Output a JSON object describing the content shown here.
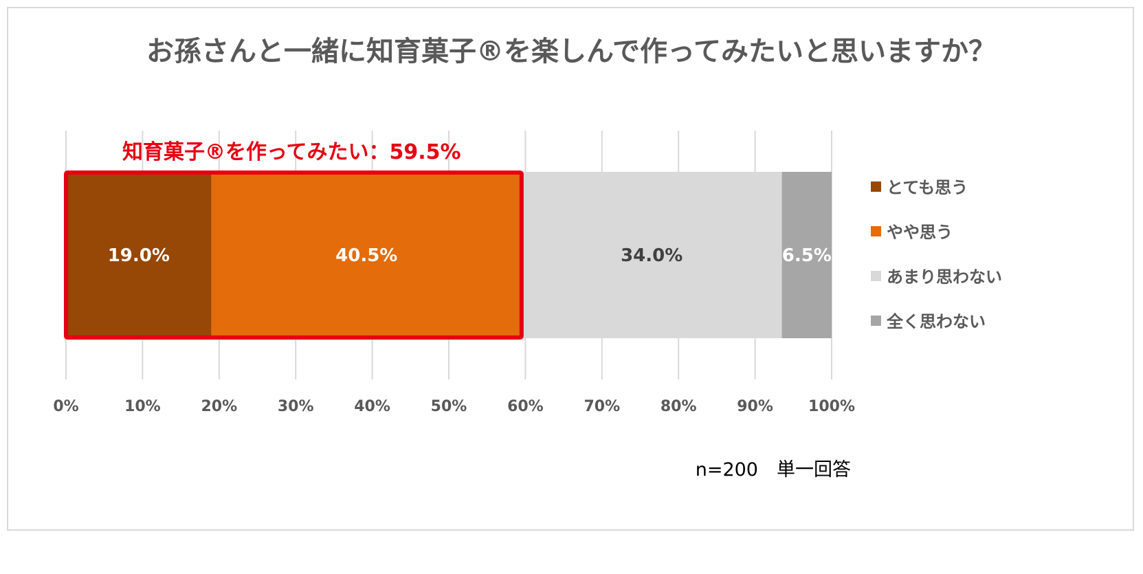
{
  "chart_data": {
    "type": "bar",
    "orientation": "horizontal-stacked-100",
    "title": "お孫さんと一緒に知育菓子®を楽しんで作ってみたいと思いますか？",
    "xlim": [
      0,
      100
    ],
    "xticks": [
      "0%",
      "10%",
      "20%",
      "30%",
      "40%",
      "50%",
      "60%",
      "70%",
      "80%",
      "90%",
      "100%"
    ],
    "grid": "vertical",
    "legend_position": "right",
    "series": [
      {
        "name": "とても思う",
        "value": 19.0,
        "label": "19.0%",
        "color": "#974706",
        "label_color": "#ffffff"
      },
      {
        "name": "やや思う",
        "value": 40.5,
        "label": "40.5%",
        "color": "#e46c0a",
        "label_color": "#ffffff"
      },
      {
        "name": "あまり思わない",
        "value": 34.0,
        "label": "34.0%",
        "color": "#d9d9d9",
        "label_color": "#404040"
      },
      {
        "name": "全く思わない",
        "value": 6.5,
        "label": "6.5%",
        "color": "#a6a6a6",
        "label_color": "#ffffff"
      }
    ],
    "annotation": {
      "text": "知育菓子®を作ってみたい：59.5%",
      "color": "#e60012",
      "highlight_range": [
        0,
        59.5
      ]
    },
    "note": "n=200　単一回答"
  }
}
